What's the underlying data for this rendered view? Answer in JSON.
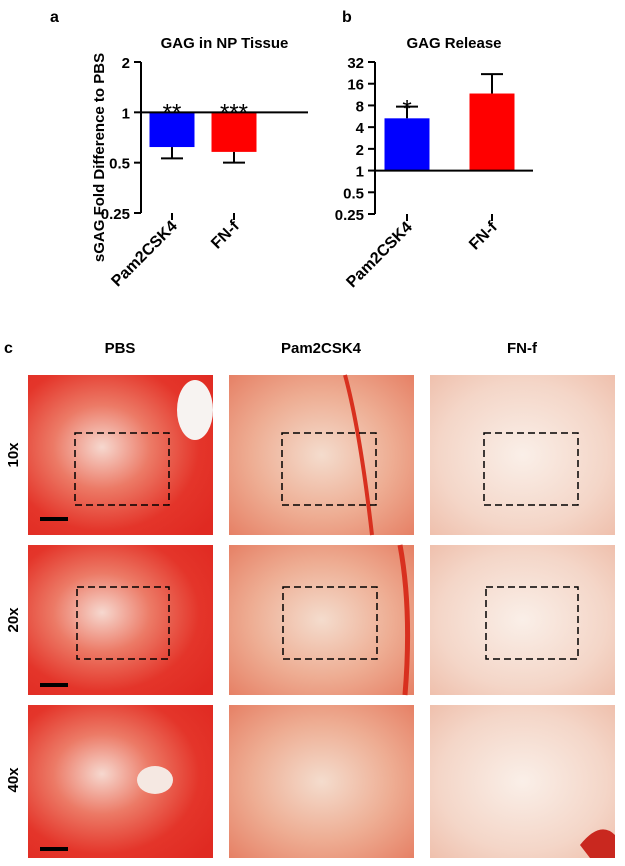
{
  "chart_data": [
    {
      "type": "bar",
      "label": "a",
      "title": "GAG in NP Tissue",
      "y_label": "sGAG Fold Difference to PBS",
      "categories": [
        "Pam2CSK4",
        "FN-f"
      ],
      "series": [
        {
          "name": "mean",
          "values": [
            0.62,
            0.58
          ],
          "errors": [
            0.09,
            0.08
          ],
          "colors": [
            "#0000ff",
            "#ff0000"
          ]
        }
      ],
      "annotations": [
        "**",
        "***"
      ],
      "log_scale": 2,
      "baseline": 1,
      "ylim": [
        0.25,
        2
      ],
      "yticks": [
        0.25,
        0.5,
        1,
        2
      ]
    },
    {
      "type": "bar",
      "label": "b",
      "title": "GAG Release",
      "categories": [
        "Pam2CSK4",
        "FN-f"
      ],
      "series": [
        {
          "name": "mean",
          "values": [
            5.3,
            11.7
          ],
          "errors": [
            2.4,
            10
          ],
          "colors": [
            "#0000ff",
            "#ff0000"
          ]
        }
      ],
      "annotations": [
        "*",
        null
      ],
      "log_scale": 2,
      "baseline": 1,
      "ylim": [
        0.25,
        32
      ],
      "yticks": [
        0.25,
        0.5,
        1,
        2,
        4,
        8,
        16,
        32
      ]
    }
  ],
  "histology": {
    "label": "c",
    "columns": [
      "PBS",
      "Pam2CSK4",
      "FN-f"
    ],
    "rows": [
      "10x",
      "20x",
      "40x"
    ]
  }
}
